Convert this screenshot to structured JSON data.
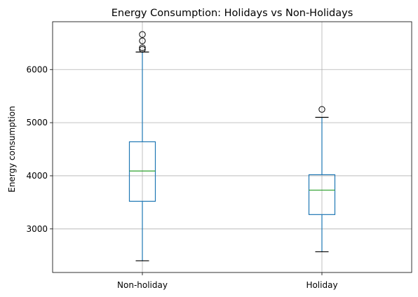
{
  "chart_data": {
    "type": "box",
    "title": "Energy Consumption: Holidays vs Non-Holidays",
    "xlabel": "",
    "ylabel": "Energy consumption",
    "ylim": [
      2180,
      6900
    ],
    "yticks": [
      3000,
      4000,
      5000,
      6000
    ],
    "grid": true,
    "categories": [
      "Non-holiday",
      "Holiday"
    ],
    "boxes": [
      {
        "category": "Non-holiday",
        "whisker_low": 2400,
        "q1": 3520,
        "median": 4090,
        "q3": 4640,
        "whisker_high": 6330,
        "outliers": [
          6380,
          6410,
          6540,
          6660
        ]
      },
      {
        "category": "Holiday",
        "whisker_low": 2570,
        "q1": 3270,
        "median": 3730,
        "q3": 4020,
        "whisker_high": 5100,
        "outliers": [
          5250
        ]
      }
    ],
    "colors": {
      "box": "#1f77b4",
      "median": "#2ca02c",
      "cap": "#000000",
      "outlier": "#000000"
    }
  }
}
